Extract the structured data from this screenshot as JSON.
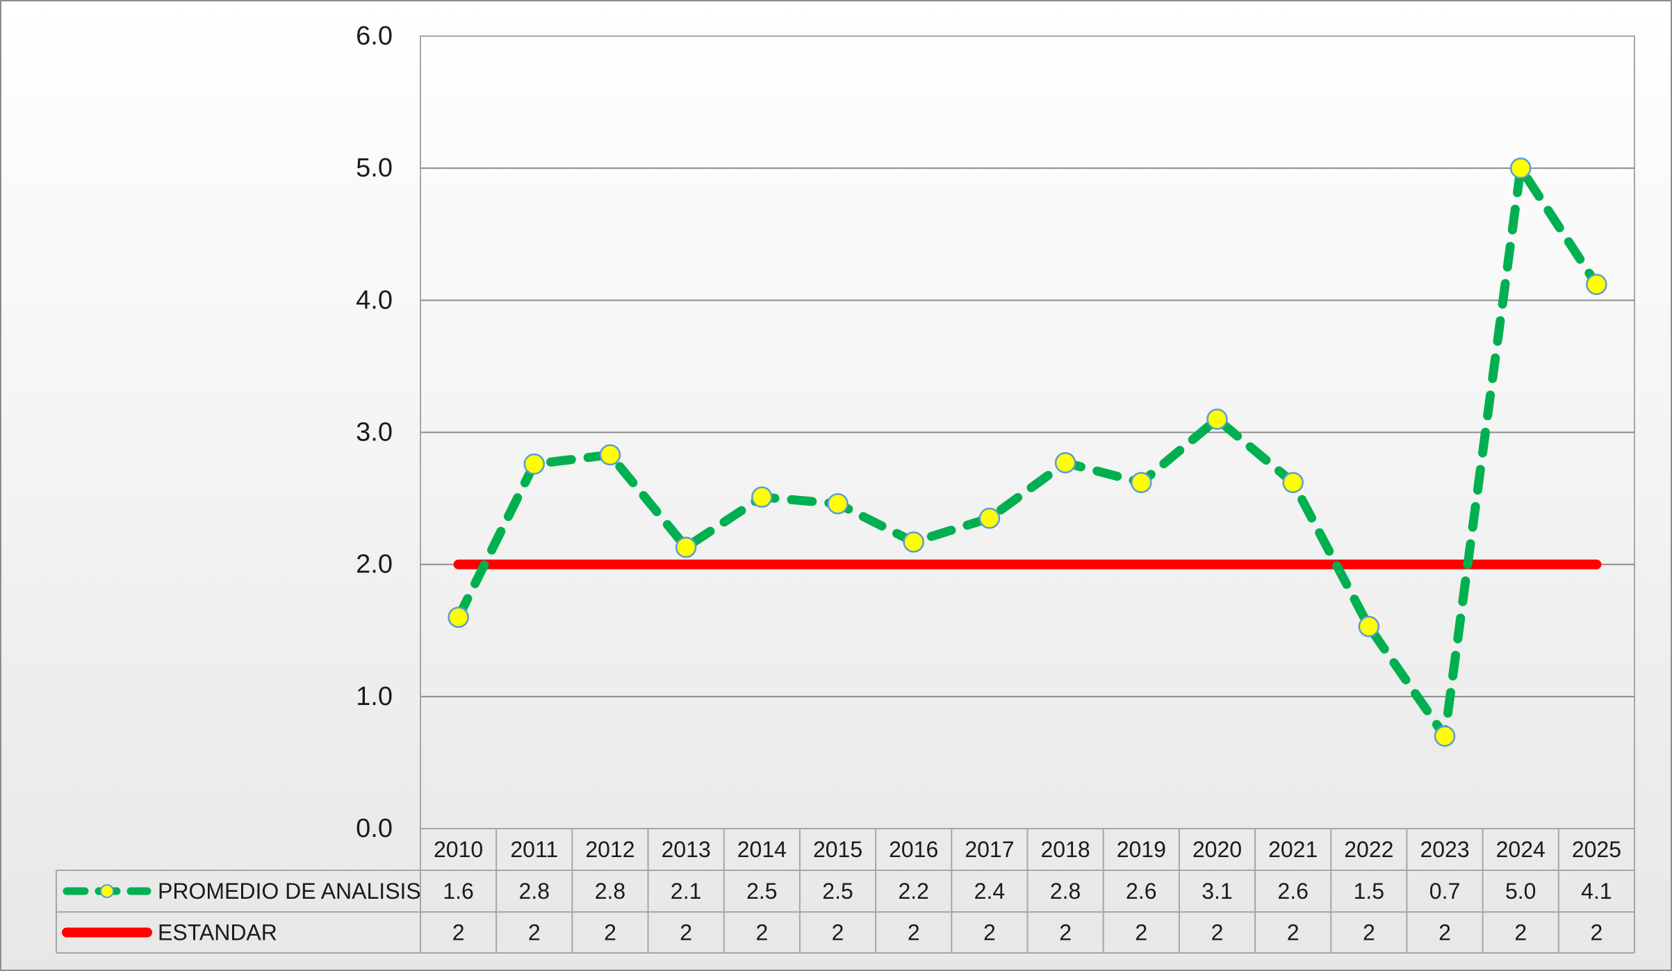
{
  "chart_data": {
    "type": "line",
    "categories": [
      "2010",
      "2011",
      "2012",
      "2013",
      "2014",
      "2015",
      "2016",
      "2017",
      "2018",
      "2019",
      "2020",
      "2021",
      "2022",
      "2023",
      "2024",
      "2025"
    ],
    "series": [
      {
        "name": "PROMEDIO DE ANALISIS",
        "values": [
          1.6,
          2.8,
          2.8,
          2.1,
          2.5,
          2.5,
          2.2,
          2.4,
          2.8,
          2.6,
          3.1,
          2.6,
          1.5,
          0.7,
          5.0,
          4.1
        ],
        "plotted_values": [
          1.6,
          2.76,
          2.83,
          2.13,
          2.51,
          2.46,
          2.17,
          2.35,
          2.77,
          2.62,
          3.1,
          2.62,
          1.53,
          0.7,
          5.0,
          4.12
        ],
        "table_labels": [
          "1.6",
          "2.8",
          "2.8",
          "2.1",
          "2.5",
          "2.5",
          "2.2",
          "2.4",
          "2.8",
          "2.6",
          "3.1",
          "2.6",
          "1.5",
          "0.7",
          "5.0",
          "4.1"
        ],
        "color": "#00b050",
        "marker_color": "#ffff00",
        "marker_edge": "#5b9bd5",
        "line_style": "dashed"
      },
      {
        "name": "ESTANDAR",
        "values": [
          2,
          2,
          2,
          2,
          2,
          2,
          2,
          2,
          2,
          2,
          2,
          2,
          2,
          2,
          2,
          2
        ],
        "table_labels": [
          "2",
          "2",
          "2",
          "2",
          "2",
          "2",
          "2",
          "2",
          "2",
          "2",
          "2",
          "2",
          "2",
          "2",
          "2",
          "2"
        ],
        "color": "#ff0000",
        "line_style": "solid"
      }
    ],
    "yticks": [
      "0.0",
      "1.0",
      "2.0",
      "3.0",
      "4.0",
      "5.0",
      "6.0"
    ],
    "ylim": [
      0,
      6
    ],
    "grid": true,
    "legend": "data-table",
    "title": "",
    "xlabel": "",
    "ylabel": ""
  }
}
